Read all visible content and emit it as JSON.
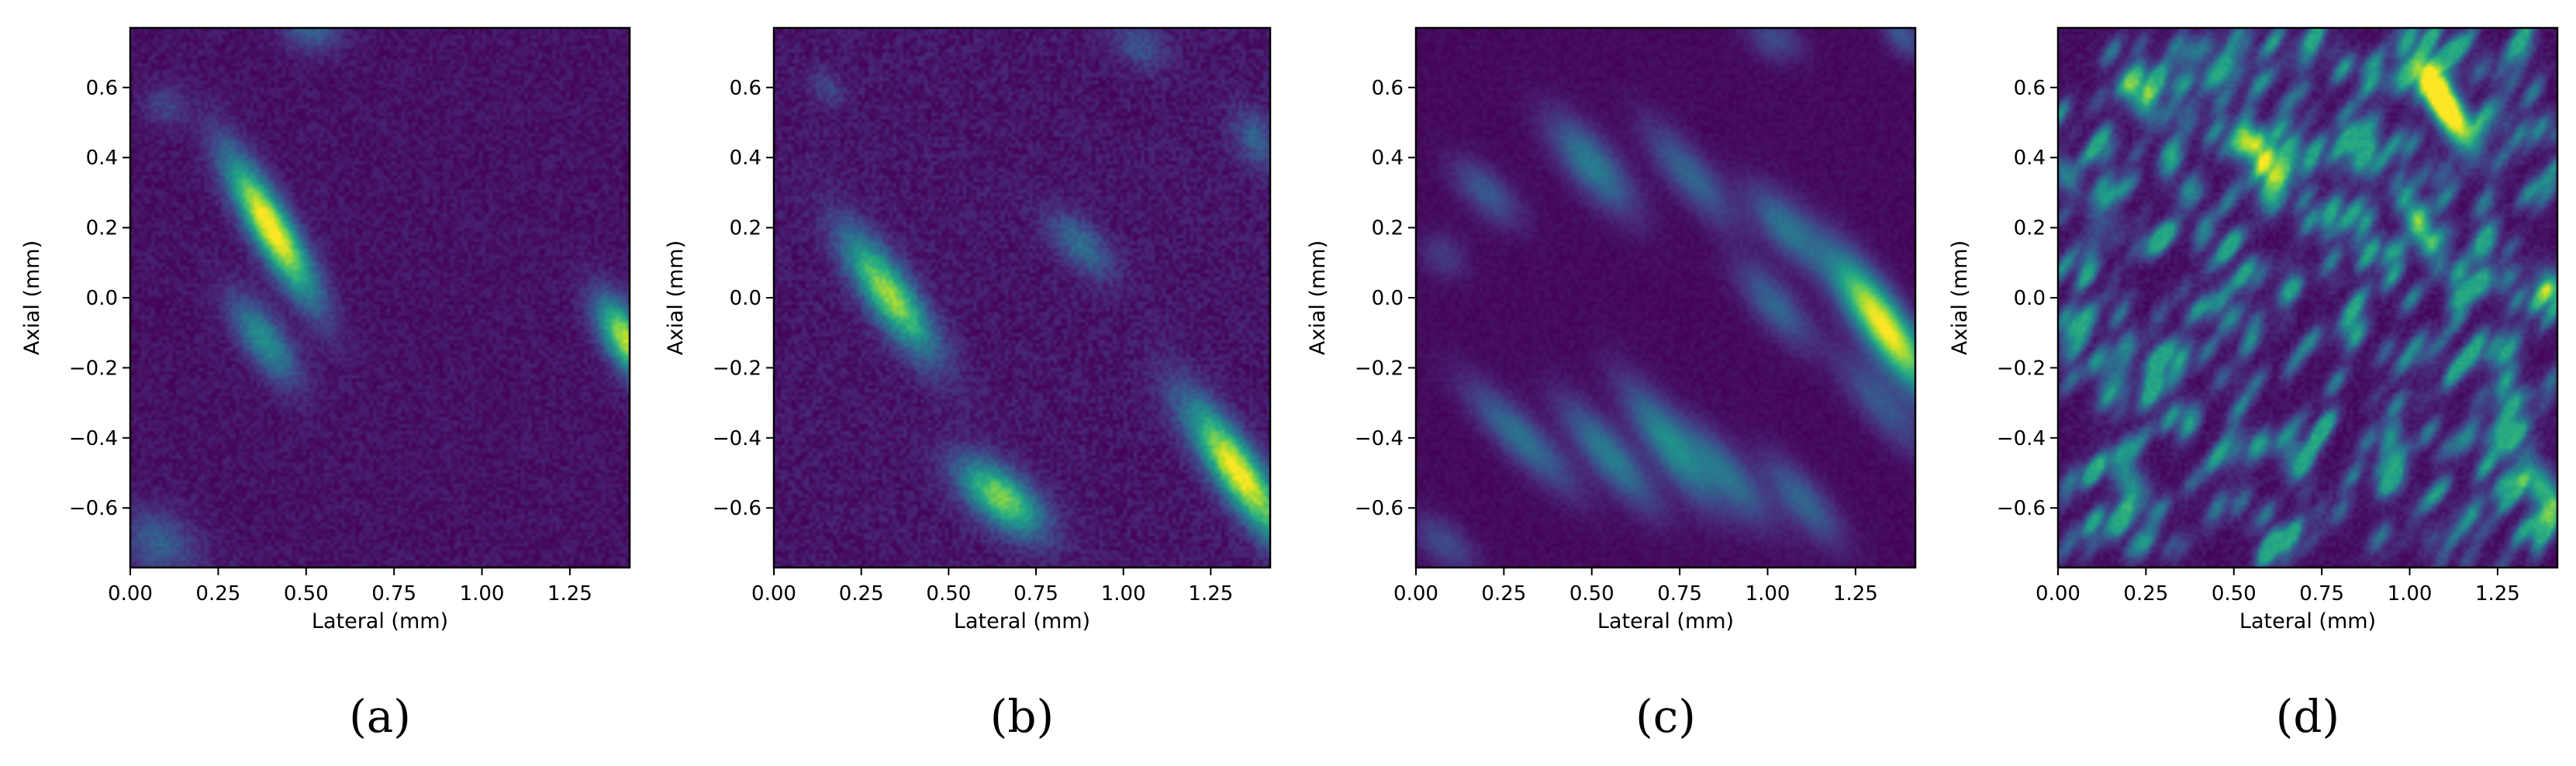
{
  "colors": {
    "colormap": "viridis",
    "background": "#440154",
    "axis": "#000000"
  },
  "chart_data": [
    {
      "type": "heatmap",
      "panel_label": "(a)",
      "xlabel": "Lateral (mm)",
      "ylabel": "Axial (mm)",
      "xlim": [
        0,
        1.42
      ],
      "ylim": [
        -0.77,
        0.77
      ],
      "xticks": [
        "0.00",
        "0.25",
        "0.50",
        "0.75",
        "1.00",
        "1.25"
      ],
      "yticks": [
        "0.6",
        "0.4",
        "0.2",
        "0.0",
        "−0.2",
        "−0.4",
        "−0.6"
      ],
      "grid": false,
      "noise": 0.1,
      "blobs": [
        {
          "x": 0.4,
          "y": 0.2,
          "length": 0.38,
          "width": 0.04,
          "angle": -60,
          "intensity": 1.0
        },
        {
          "x": 0.38,
          "y": -0.12,
          "length": 0.24,
          "width": 0.04,
          "angle": -55,
          "intensity": 0.45
        },
        {
          "x": 1.41,
          "y": -0.12,
          "length": 0.22,
          "width": 0.04,
          "angle": -60,
          "intensity": 0.85
        },
        {
          "x": 0.08,
          "y": -0.7,
          "length": 0.2,
          "width": 0.06,
          "angle": -30,
          "intensity": 0.25
        },
        {
          "x": 0.52,
          "y": 0.76,
          "length": 0.14,
          "width": 0.04,
          "angle": 0,
          "intensity": 0.25
        },
        {
          "x": 0.1,
          "y": 0.55,
          "length": 0.1,
          "width": 0.04,
          "angle": -40,
          "intensity": 0.15
        }
      ]
    },
    {
      "type": "heatmap",
      "panel_label": "(b)",
      "xlabel": "Lateral (mm)",
      "ylabel": "Axial (mm)",
      "xlim": [
        0,
        1.42
      ],
      "ylim": [
        -0.77,
        0.77
      ],
      "xticks": [
        "0.00",
        "0.25",
        "0.50",
        "0.75",
        "1.00",
        "1.25"
      ],
      "yticks": [
        "0.6",
        "0.4",
        "0.2",
        "0.0",
        "−0.2",
        "−0.4",
        "−0.6"
      ],
      "grid": false,
      "noise": 0.12,
      "blobs": [
        {
          "x": 0.33,
          "y": 0.01,
          "length": 0.34,
          "width": 0.045,
          "angle": -55,
          "intensity": 0.8
        },
        {
          "x": 0.65,
          "y": -0.57,
          "length": 0.24,
          "width": 0.05,
          "angle": -40,
          "intensity": 0.75
        },
        {
          "x": 1.33,
          "y": -0.5,
          "length": 0.4,
          "width": 0.045,
          "angle": -55,
          "intensity": 0.95
        },
        {
          "x": 0.88,
          "y": 0.15,
          "length": 0.2,
          "width": 0.04,
          "angle": -45,
          "intensity": 0.3
        },
        {
          "x": 1.38,
          "y": 0.45,
          "length": 0.16,
          "width": 0.04,
          "angle": -60,
          "intensity": 0.25
        },
        {
          "x": 1.05,
          "y": 0.72,
          "length": 0.14,
          "width": 0.04,
          "angle": -30,
          "intensity": 0.2
        },
        {
          "x": 0.15,
          "y": 0.6,
          "length": 0.1,
          "width": 0.03,
          "angle": -40,
          "intensity": 0.15
        }
      ]
    },
    {
      "type": "heatmap",
      "panel_label": "(c)",
      "xlabel": "Lateral (mm)",
      "ylabel": "Axial (mm)",
      "xlim": [
        0,
        1.42
      ],
      "ylim": [
        -0.77,
        0.77
      ],
      "xticks": [
        "0.00",
        "0.25",
        "0.50",
        "0.75",
        "1.00",
        "1.25"
      ],
      "yticks": [
        "0.6",
        "0.4",
        "0.2",
        "0.0",
        "−0.2",
        "−0.4",
        "−0.6"
      ],
      "grid": false,
      "noise": 0.05,
      "blobs": [
        {
          "x": 1.33,
          "y": -0.08,
          "length": 0.4,
          "width": 0.045,
          "angle": -55,
          "intensity": 1.0
        },
        {
          "x": 0.5,
          "y": 0.38,
          "length": 0.28,
          "width": 0.045,
          "angle": -50,
          "intensity": 0.4
        },
        {
          "x": 0.2,
          "y": 0.3,
          "length": 0.2,
          "width": 0.04,
          "angle": -45,
          "intensity": 0.25
        },
        {
          "x": 0.78,
          "y": 0.35,
          "length": 0.3,
          "width": 0.04,
          "angle": -50,
          "intensity": 0.3
        },
        {
          "x": 1.05,
          "y": 0.2,
          "length": 0.24,
          "width": 0.04,
          "angle": -50,
          "intensity": 0.35
        },
        {
          "x": 1.02,
          "y": -0.02,
          "length": 0.24,
          "width": 0.04,
          "angle": -50,
          "intensity": 0.3
        },
        {
          "x": 1.32,
          "y": -0.3,
          "length": 0.3,
          "width": 0.04,
          "angle": -50,
          "intensity": 0.25
        },
        {
          "x": 0.3,
          "y": -0.4,
          "length": 0.34,
          "width": 0.04,
          "angle": -45,
          "intensity": 0.35
        },
        {
          "x": 0.55,
          "y": -0.45,
          "length": 0.32,
          "width": 0.04,
          "angle": -50,
          "intensity": 0.4
        },
        {
          "x": 0.72,
          "y": -0.42,
          "length": 0.34,
          "width": 0.04,
          "angle": -55,
          "intensity": 0.45
        },
        {
          "x": 0.88,
          "y": -0.5,
          "length": 0.3,
          "width": 0.04,
          "angle": -50,
          "intensity": 0.35
        },
        {
          "x": 1.1,
          "y": -0.58,
          "length": 0.26,
          "width": 0.04,
          "angle": -50,
          "intensity": 0.3
        },
        {
          "x": 0.08,
          "y": -0.7,
          "length": 0.18,
          "width": 0.04,
          "angle": -40,
          "intensity": 0.2
        },
        {
          "x": 0.08,
          "y": 0.12,
          "length": 0.12,
          "width": 0.04,
          "angle": -45,
          "intensity": 0.15
        },
        {
          "x": 1.02,
          "y": 0.74,
          "length": 0.14,
          "width": 0.04,
          "angle": -30,
          "intensity": 0.2
        },
        {
          "x": 1.38,
          "y": 0.75,
          "length": 0.12,
          "width": 0.03,
          "angle": -50,
          "intensity": 0.25
        }
      ]
    },
    {
      "type": "heatmap",
      "panel_label": "(d)",
      "xlabel": "Lateral (mm)",
      "ylabel": "Axial (mm)",
      "xlim": [
        0,
        1.42
      ],
      "ylim": [
        -0.77,
        0.77
      ],
      "xticks": [
        "0.00",
        "0.25",
        "0.50",
        "0.75",
        "1.00",
        "1.25"
      ],
      "yticks": [
        "0.6",
        "0.4",
        "0.2",
        "0.0",
        "−0.2",
        "−0.4",
        "−0.6"
      ],
      "grid": false,
      "noise": 0.08,
      "speckle": 0.55,
      "blobs": [
        {
          "x": 1.12,
          "y": 0.52,
          "length": 0.2,
          "width": 0.03,
          "angle": -60,
          "intensity": 0.95
        },
        {
          "x": 1.08,
          "y": 0.58,
          "length": 0.14,
          "width": 0.025,
          "angle": -60,
          "intensity": 0.75
        },
        {
          "x": 1.03,
          "y": 0.2,
          "length": 0.16,
          "width": 0.025,
          "angle": -65,
          "intensity": 0.65
        },
        {
          "x": 1.38,
          "y": -0.55,
          "length": 0.18,
          "width": 0.03,
          "angle": -60,
          "intensity": 0.6
        },
        {
          "x": 0.58,
          "y": 0.4,
          "length": 0.16,
          "width": 0.03,
          "angle": -55,
          "intensity": 0.55
        },
        {
          "x": 0.24,
          "y": 0.56,
          "length": 0.14,
          "width": 0.03,
          "angle": -55,
          "intensity": 0.45
        },
        {
          "x": 0.2,
          "y": -0.52,
          "length": 0.14,
          "width": 0.03,
          "angle": -60,
          "intensity": 0.45
        },
        {
          "x": 1.41,
          "y": 0.02,
          "length": 0.12,
          "width": 0.03,
          "angle": -60,
          "intensity": 0.5
        },
        {
          "x": 0.02,
          "y": 0.35,
          "length": 0.1,
          "width": 0.025,
          "angle": -60,
          "intensity": 0.4
        }
      ]
    }
  ]
}
